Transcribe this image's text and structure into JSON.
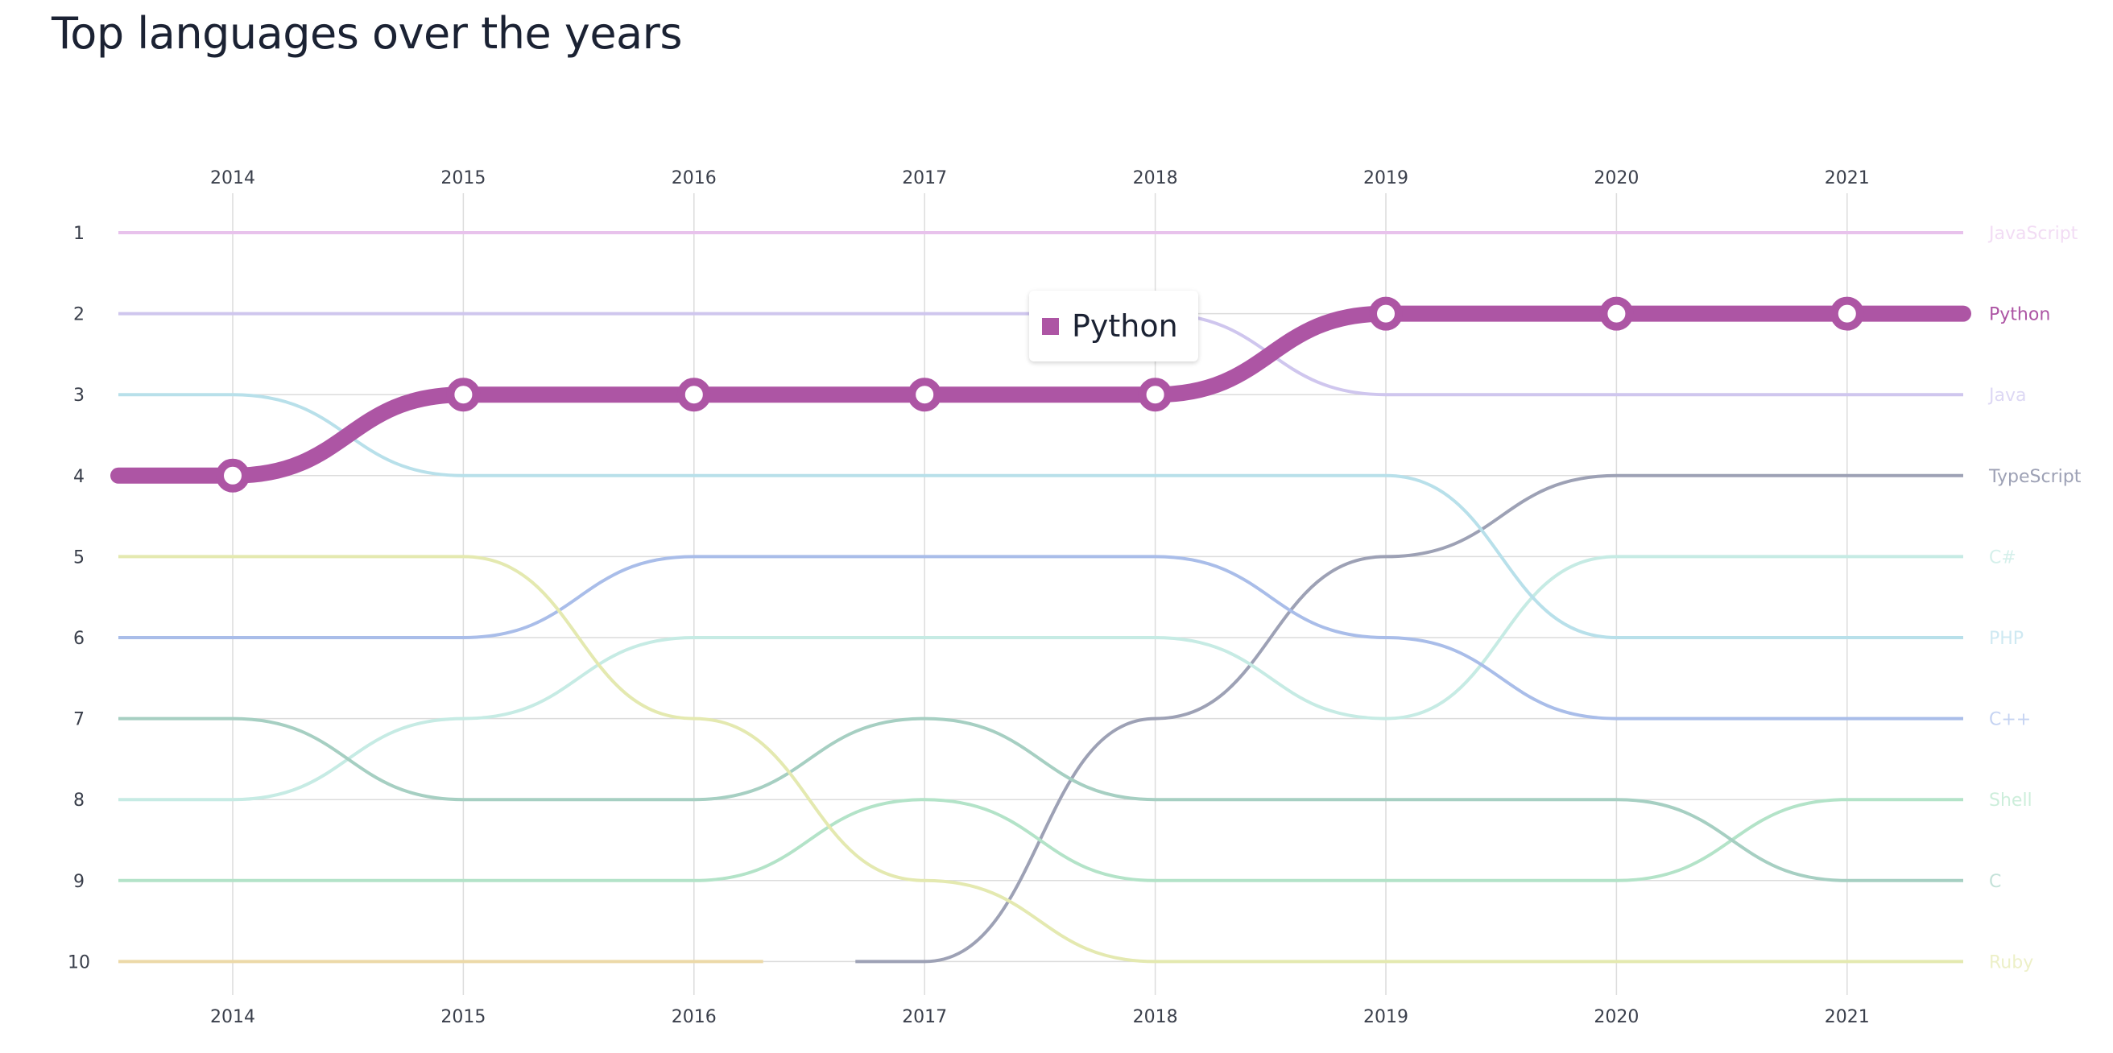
{
  "title": "Top languages over the years",
  "tooltip": {
    "series": "Python",
    "color": "#ad55a4"
  },
  "chart_data": {
    "type": "bump",
    "title": "Top languages over the years",
    "years": [
      2014,
      2015,
      2016,
      2017,
      2018,
      2019,
      2020,
      2021
    ],
    "rank_ticks": [
      1,
      2,
      3,
      4,
      5,
      6,
      7,
      8,
      9,
      10
    ],
    "ylim": [
      1,
      10
    ],
    "y_inverted": true,
    "grid": true,
    "highlighted": "Python",
    "series": [
      {
        "name": "JavaScript",
        "color": "#e8c2ec",
        "label_color": "#f2dcf4",
        "ranks": [
          1,
          1,
          1,
          1,
          1,
          1,
          1,
          1
        ]
      },
      {
        "name": "Java",
        "color": "#cfc6ee",
        "label_color": "#ddd8f4",
        "ranks": [
          2,
          2,
          2,
          2,
          2,
          3,
          3,
          3
        ]
      },
      {
        "name": "TypeScript",
        "color": "#9da1b5",
        "label_color": "#9da1b5",
        "ranks": [
          null,
          null,
          null,
          10,
          7,
          5,
          4,
          4
        ]
      },
      {
        "name": "C#",
        "color": "#c6ebe4",
        "label_color": "#d5f0eb",
        "ranks": [
          8,
          7,
          6,
          6,
          6,
          7,
          5,
          5
        ]
      },
      {
        "name": "PHP",
        "color": "#b8e0ea",
        "label_color": "#cfe9f2",
        "ranks": [
          3,
          4,
          4,
          4,
          4,
          4,
          6,
          6
        ]
      },
      {
        "name": "C++",
        "color": "#a9bde9",
        "label_color": "#c5d3f2",
        "ranks": [
          6,
          6,
          5,
          5,
          5,
          6,
          7,
          7
        ]
      },
      {
        "name": "Shell",
        "color": "#b3e3c8",
        "label_color": "#cdeedb",
        "ranks": [
          9,
          9,
          9,
          8,
          9,
          9,
          9,
          8
        ]
      },
      {
        "name": "C",
        "color": "#a6cfc2",
        "label_color": "#c4e2d9",
        "ranks": [
          7,
          8,
          8,
          7,
          8,
          8,
          8,
          9
        ]
      },
      {
        "name": "Ruby",
        "color": "#e4e9b0",
        "label_color": "#edf0c8",
        "ranks": [
          5,
          5,
          7,
          9,
          10,
          10,
          10,
          10
        ]
      },
      {
        "name": "",
        "color": "#ecd9a8",
        "label_color": "#ecd9a8",
        "ranks": [
          10,
          10,
          10,
          null,
          null,
          null,
          null,
          null
        ]
      },
      {
        "name": "Python",
        "color": "#ad55a4",
        "label_color": "#ad55a4",
        "ranks": [
          4,
          3,
          3,
          3,
          3,
          2,
          2,
          2
        ]
      }
    ]
  }
}
